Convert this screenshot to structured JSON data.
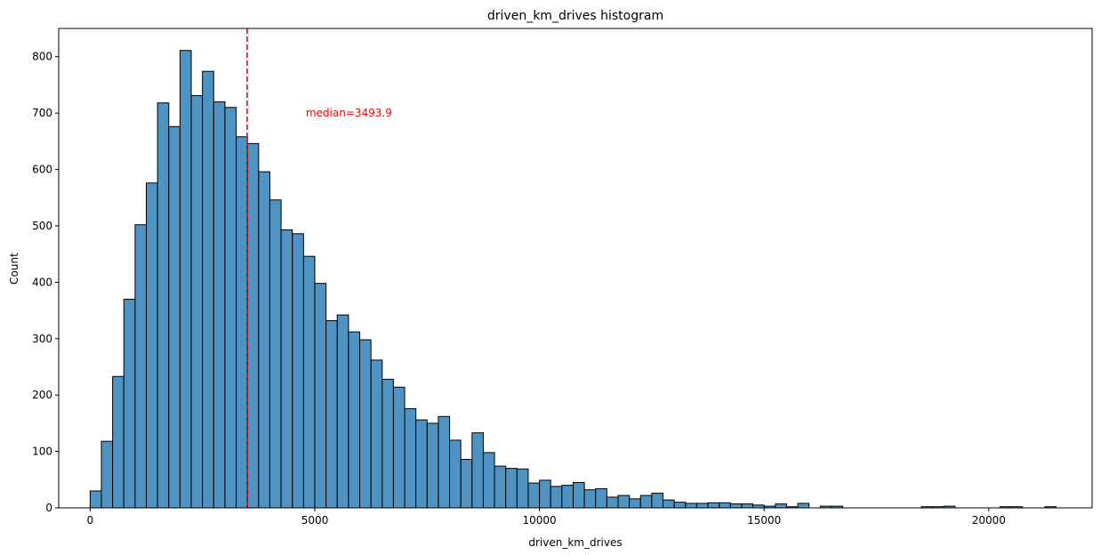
{
  "chart_data": {
    "type": "bar",
    "title": "driven_km_drives histogram",
    "xlabel": "driven_km_drives",
    "ylabel": "Count",
    "xlim": [
      -700,
      22300
    ],
    "ylim": [
      0,
      850
    ],
    "xticks": [
      0,
      5000,
      10000,
      15000,
      20000
    ],
    "yticks": [
      0,
      100,
      200,
      300,
      400,
      500,
      600,
      700,
      800
    ],
    "bin_start": 0,
    "bin_width": 250,
    "values": [
      30,
      118,
      233,
      370,
      502,
      576,
      718,
      676,
      811,
      731,
      774,
      720,
      710,
      658,
      646,
      596,
      546,
      493,
      486,
      446,
      398,
      332,
      342,
      312,
      298,
      262,
      228,
      214,
      176,
      156,
      150,
      162,
      120,
      86,
      133,
      98,
      74,
      70,
      69,
      44,
      49,
      38,
      40,
      45,
      32,
      34,
      19,
      22,
      16,
      22,
      26,
      14,
      10,
      8,
      8,
      9,
      9,
      7,
      7,
      5,
      3,
      7,
      2,
      8,
      0,
      3,
      3,
      0,
      0,
      0,
      0,
      0,
      0,
      0,
      2,
      2,
      3,
      0,
      0,
      0,
      0,
      2,
      2,
      0,
      0,
      2,
      0,
      0,
      0,
      0,
      0,
      0,
      0,
      0,
      2
    ],
    "bar_color": "#4f93c2",
    "edge_color": "#000000",
    "median": 3493.9,
    "median_label": "median=3493.9",
    "median_color": "#ff0000",
    "median_label_x": 4800,
    "median_label_y": 700,
    "grid": false,
    "legend": "none"
  }
}
